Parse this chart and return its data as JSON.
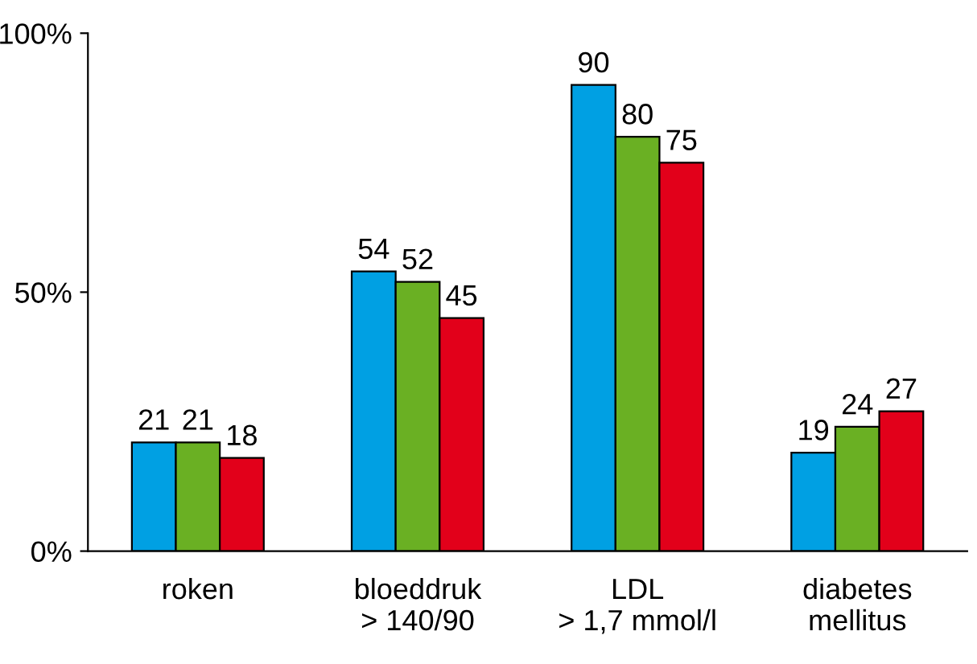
{
  "chart_data": {
    "type": "bar",
    "categories": [
      "roken",
      "bloeddruk\n> 140/90",
      "LDL\n> 1,7 mmol/l",
      "diabetes\nmellitus"
    ],
    "series": [
      {
        "color": "#00a0e3",
        "values": [
          21,
          54,
          90,
          19
        ]
      },
      {
        "color": "#6ab023",
        "values": [
          21,
          52,
          80,
          24
        ]
      },
      {
        "color": "#e2001a",
        "values": [
          18,
          45,
          75,
          27
        ]
      }
    ],
    "ylim": [
      0,
      100
    ],
    "yticks": [
      {
        "value": 0,
        "label": "0%"
      },
      {
        "value": 50,
        "label": "50%"
      },
      {
        "value": 100,
        "label": "100%"
      }
    ],
    "data_labels": true,
    "grid": false,
    "legend": false
  }
}
